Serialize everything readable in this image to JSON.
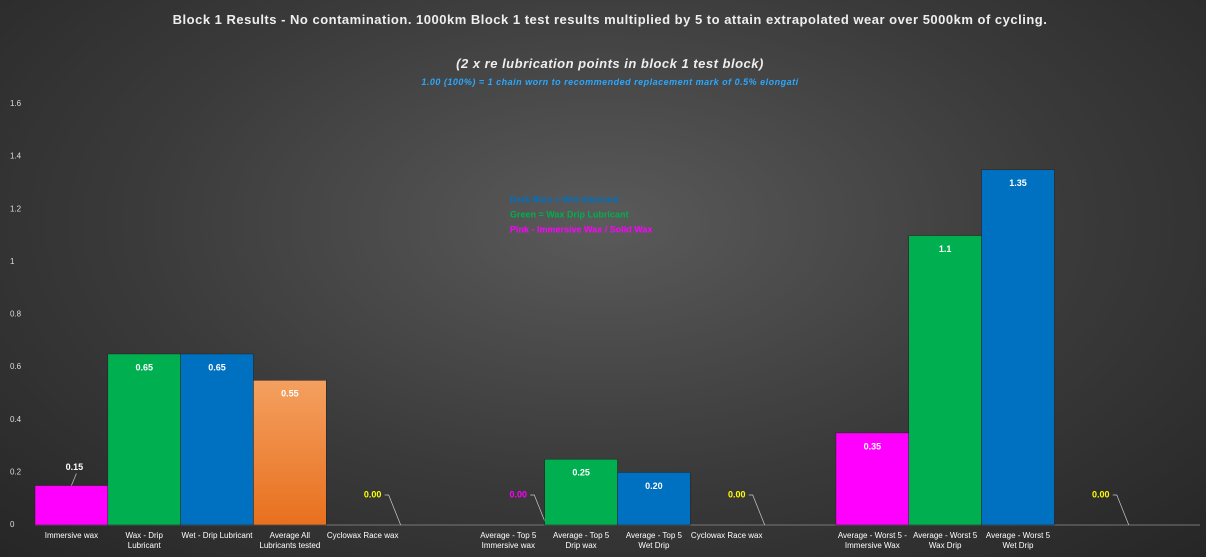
{
  "chart_data": {
    "type": "bar",
    "title": "Block 1 Results - No contamination. 1000km Block 1 test results multiplied by 5 to attain extrapolated wear over 5000km of cycling.",
    "subtitle": "(2 x re lubrication points in block 1 test block)",
    "note": "1.00 (100%) = 1 chain worn to recommended replacement mark of 0.5% elongati",
    "annotations": [
      "Dark Blue = Wet lubricant",
      "Green = Wax Drip Lubricant",
      "Pink - Immersive Wax / Solid Wax"
    ],
    "annotation_colors": [
      "#0070c0",
      "#00b050",
      "#ff00ff"
    ],
    "categories": [
      "Immersive wax",
      "Wax - Drip Lubricant",
      "Wet - Drip Lubricant",
      "Average All Lubricants tested",
      "Cyclowax Race wax",
      null,
      "Average - Top 5 Immersive wax",
      "Average - Top 5 Drip wax",
      "Average - Top 5 Wet Drip",
      "Cyclowax Race wax",
      null,
      "Average - Worst 5 - Immersive Wax",
      "Average - Worst 5 Wax Drip",
      "Average - Worst 5 Wet Drip",
      null,
      null
    ],
    "values": [
      0.15,
      0.65,
      0.65,
      0.55,
      0,
      null,
      0,
      0.25,
      0.2,
      0,
      null,
      0.35,
      1.1,
      1.35,
      0,
      null
    ],
    "value_labels": [
      "0.15",
      "0.65",
      "0.65",
      "0.55",
      "0.00",
      null,
      "0.00",
      "0.25",
      "0.20",
      "0.00",
      null,
      "0.35",
      "1.1",
      "1.35",
      "0.00",
      null
    ],
    "colors": [
      "#ff00ff",
      "#00b050",
      "#0070c0",
      "#f08a40",
      "#ffff00",
      null,
      "#ff00ff",
      "#00b050",
      "#0070c0",
      "#ffff00",
      null,
      "#ff00ff",
      "#00b050",
      "#0070c0",
      "#ffff00",
      null
    ],
    "ylim": [
      0,
      1.6
    ],
    "yticks": [
      0,
      0.2,
      0.4,
      0.6,
      0.8,
      1,
      1.2,
      1.4,
      1.6
    ],
    "grid": false
  }
}
